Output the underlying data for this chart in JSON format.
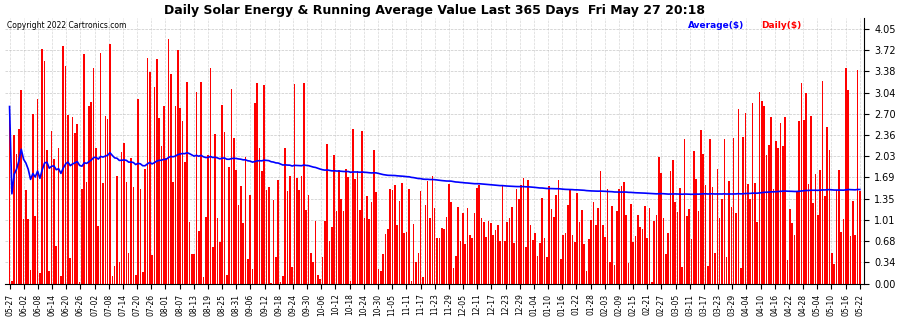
{
  "title": "Daily Solar Energy & Running Average Value Last 365 Days  Fri May 27 20:18",
  "copyright": "Copyright 2022 Cartronics.com",
  "legend_avg": "Average($)",
  "legend_daily": "Daily($)",
  "bar_color": "#ff0000",
  "avg_color": "#0000ff",
  "background_color": "#ffffff",
  "grid_color": "#b0b0b0",
  "ylim": [
    0.0,
    4.219
  ],
  "yticks": [
    0.0,
    0.34,
    0.68,
    1.01,
    1.35,
    1.69,
    2.03,
    2.36,
    2.7,
    3.04,
    3.38,
    3.72,
    4.05
  ],
  "x_labels": [
    "05-27",
    "06-02",
    "06-08",
    "06-14",
    "06-20",
    "06-26",
    "07-02",
    "07-08",
    "07-14",
    "07-20",
    "07-26",
    "08-01",
    "08-07",
    "08-13",
    "08-19",
    "08-25",
    "08-31",
    "09-06",
    "09-12",
    "09-18",
    "09-24",
    "09-30",
    "10-06",
    "10-12",
    "10-18",
    "10-24",
    "10-30",
    "11-05",
    "11-11",
    "11-17",
    "11-23",
    "11-29",
    "12-05",
    "12-11",
    "12-17",
    "12-23",
    "12-29",
    "01-04",
    "01-10",
    "01-16",
    "01-22",
    "01-28",
    "02-03",
    "02-09",
    "02-15",
    "02-21",
    "02-27",
    "03-05",
    "03-11",
    "03-17",
    "03-23",
    "03-29",
    "04-04",
    "04-10",
    "04-16",
    "04-22",
    "04-28",
    "05-04",
    "05-10",
    "05-16",
    "05-22"
  ]
}
